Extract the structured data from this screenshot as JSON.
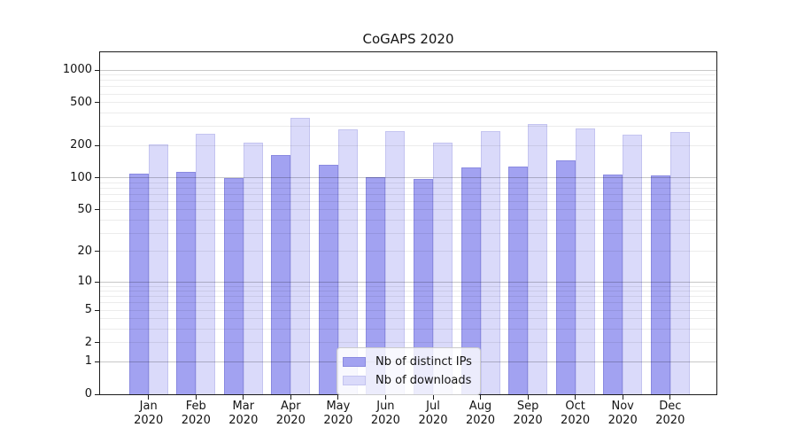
{
  "chart_data": {
    "type": "bar",
    "title": "CoGAPS 2020",
    "yscale": "log1p",
    "ylim": [
      0,
      1460
    ],
    "yticks": [
      0,
      1,
      2,
      5,
      10,
      20,
      50,
      100,
      200,
      500,
      1000
    ],
    "grid": true,
    "legend_position": "lower center",
    "categories": [
      {
        "month": "Jan",
        "year": "2020"
      },
      {
        "month": "Feb",
        "year": "2020"
      },
      {
        "month": "Mar",
        "year": "2020"
      },
      {
        "month": "Apr",
        "year": "2020"
      },
      {
        "month": "May",
        "year": "2020"
      },
      {
        "month": "Jun",
        "year": "2020"
      },
      {
        "month": "Jul",
        "year": "2020"
      },
      {
        "month": "Aug",
        "year": "2020"
      },
      {
        "month": "Sep",
        "year": "2020"
      },
      {
        "month": "Oct",
        "year": "2020"
      },
      {
        "month": "Nov",
        "year": "2020"
      },
      {
        "month": "Dec",
        "year": "2020"
      }
    ],
    "series": [
      {
        "name": "Nb of distinct IPs",
        "color": "#a2a2f1",
        "edge_color": "#8a8ae0",
        "values": [
          110,
          113,
          100,
          163,
          132,
          101,
          97,
          125,
          127,
          145,
          108,
          106
        ]
      },
      {
        "name": "Nb of downloads",
        "color": "#dadafa",
        "edge_color": "#c4c4f0",
        "values": [
          203,
          255,
          213,
          360,
          281,
          270,
          212,
          271,
          316,
          286,
          250,
          266
        ]
      }
    ]
  }
}
